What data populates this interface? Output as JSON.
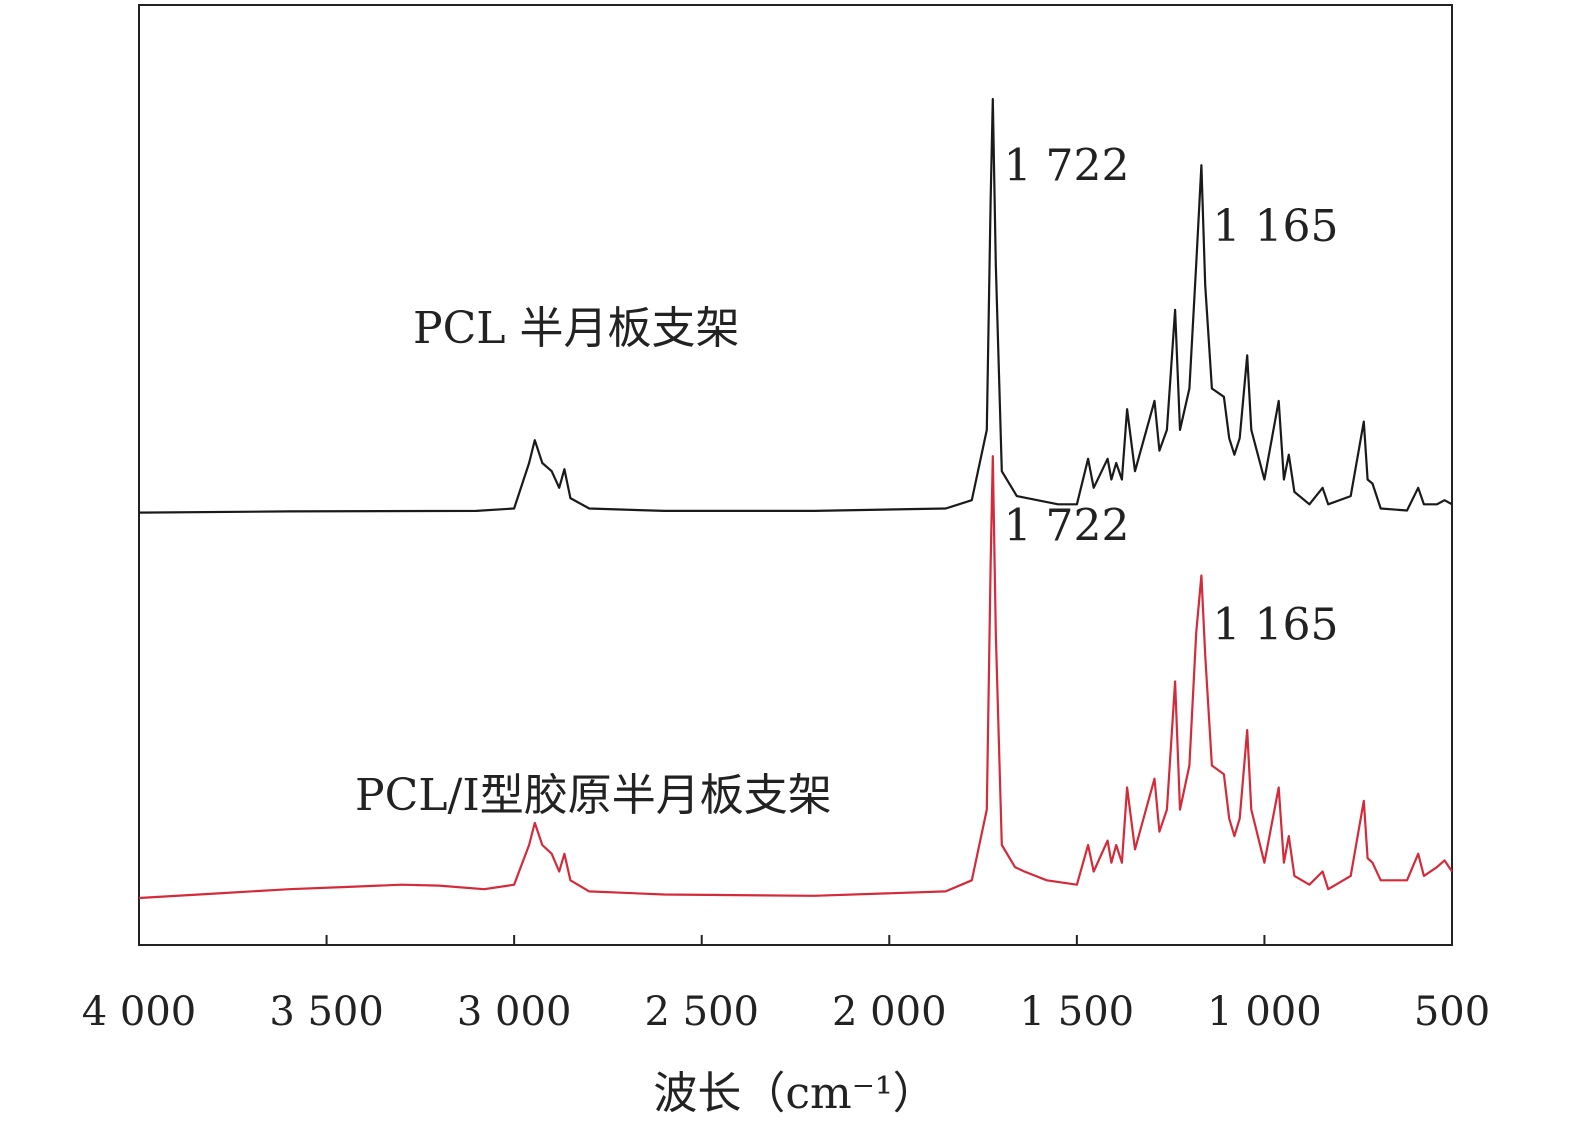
{
  "chart_data": {
    "type": "line",
    "xlabel": "波长（cm⁻¹）",
    "xlim": [
      4000,
      500
    ],
    "x_ticks": [
      {
        "value": 4000,
        "label": "4 000"
      },
      {
        "value": 3500,
        "label": "3 500"
      },
      {
        "value": 3000,
        "label": "3 000"
      },
      {
        "value": 2500,
        "label": "2 500"
      },
      {
        "value": 2000,
        "label": "2 000"
      },
      {
        "value": 1500,
        "label": "1 500"
      },
      {
        "value": 1000,
        "label": "1 000"
      },
      {
        "value": 500,
        "label": "500"
      }
    ],
    "y_axis": "relative intensity (no ticks shown)",
    "ylim": [
      0,
      1
    ],
    "grid": false,
    "series": [
      {
        "name": "PCL 半月板支架",
        "color": "#1a1a1a",
        "baseline": 0.46,
        "scale": 0.44,
        "points": [
          [
            4000,
            0.0
          ],
          [
            3600,
            0.003
          ],
          [
            3100,
            0.004
          ],
          [
            3000,
            0.01
          ],
          [
            2960,
            0.12
          ],
          [
            2945,
            0.175
          ],
          [
            2925,
            0.12
          ],
          [
            2900,
            0.1
          ],
          [
            2880,
            0.06
          ],
          [
            2866,
            0.105
          ],
          [
            2850,
            0.035
          ],
          [
            2800,
            0.01
          ],
          [
            2600,
            0.004
          ],
          [
            2200,
            0.004
          ],
          [
            1850,
            0.01
          ],
          [
            1780,
            0.03
          ],
          [
            1740,
            0.2
          ],
          [
            1730,
            0.75
          ],
          [
            1724,
            1.0
          ],
          [
            1716,
            0.6
          ],
          [
            1700,
            0.1
          ],
          [
            1660,
            0.04
          ],
          [
            1550,
            0.02
          ],
          [
            1500,
            0.02
          ],
          [
            1470,
            0.13
          ],
          [
            1455,
            0.06
          ],
          [
            1418,
            0.13
          ],
          [
            1408,
            0.08
          ],
          [
            1395,
            0.12
          ],
          [
            1380,
            0.08
          ],
          [
            1366,
            0.25
          ],
          [
            1345,
            0.1
          ],
          [
            1293,
            0.27
          ],
          [
            1280,
            0.15
          ],
          [
            1260,
            0.2
          ],
          [
            1238,
            0.49
          ],
          [
            1225,
            0.2
          ],
          [
            1200,
            0.3
          ],
          [
            1182,
            0.6
          ],
          [
            1168,
            0.84
          ],
          [
            1158,
            0.55
          ],
          [
            1140,
            0.3
          ],
          [
            1108,
            0.28
          ],
          [
            1094,
            0.18
          ],
          [
            1080,
            0.14
          ],
          [
            1066,
            0.18
          ],
          [
            1046,
            0.38
          ],
          [
            1035,
            0.2
          ],
          [
            1000,
            0.08
          ],
          [
            962,
            0.27
          ],
          [
            948,
            0.08
          ],
          [
            935,
            0.14
          ],
          [
            920,
            0.05
          ],
          [
            880,
            0.02
          ],
          [
            845,
            0.06
          ],
          [
            830,
            0.02
          ],
          [
            770,
            0.04
          ],
          [
            735,
            0.22
          ],
          [
            725,
            0.08
          ],
          [
            712,
            0.07
          ],
          [
            690,
            0.01
          ],
          [
            620,
            0.005
          ],
          [
            590,
            0.06
          ],
          [
            575,
            0.02
          ],
          [
            540,
            0.02
          ],
          [
            520,
            0.03
          ],
          [
            500,
            0.02
          ]
        ]
      },
      {
        "name": "PCL/Ⅰ型胶原半月板支架",
        "color": "#d42a3a",
        "baseline": 0.05,
        "scale": 0.47,
        "points": [
          [
            4000,
            0.0
          ],
          [
            3800,
            0.01
          ],
          [
            3600,
            0.02
          ],
          [
            3450,
            0.025
          ],
          [
            3300,
            0.03
          ],
          [
            3200,
            0.028
          ],
          [
            3080,
            0.02
          ],
          [
            3000,
            0.03
          ],
          [
            2960,
            0.12
          ],
          [
            2945,
            0.17
          ],
          [
            2925,
            0.12
          ],
          [
            2900,
            0.1
          ],
          [
            2880,
            0.06
          ],
          [
            2866,
            0.1
          ],
          [
            2850,
            0.04
          ],
          [
            2800,
            0.015
          ],
          [
            2600,
            0.008
          ],
          [
            2200,
            0.005
          ],
          [
            1850,
            0.015
          ],
          [
            1780,
            0.04
          ],
          [
            1740,
            0.2
          ],
          [
            1730,
            0.75
          ],
          [
            1724,
            1.0
          ],
          [
            1716,
            0.6
          ],
          [
            1700,
            0.12
          ],
          [
            1665,
            0.07
          ],
          [
            1640,
            0.06
          ],
          [
            1580,
            0.04
          ],
          [
            1500,
            0.03
          ],
          [
            1470,
            0.12
          ],
          [
            1455,
            0.06
          ],
          [
            1418,
            0.13
          ],
          [
            1408,
            0.08
          ],
          [
            1395,
            0.12
          ],
          [
            1380,
            0.08
          ],
          [
            1366,
            0.25
          ],
          [
            1345,
            0.11
          ],
          [
            1293,
            0.27
          ],
          [
            1280,
            0.15
          ],
          [
            1260,
            0.2
          ],
          [
            1238,
            0.49
          ],
          [
            1225,
            0.2
          ],
          [
            1200,
            0.3
          ],
          [
            1182,
            0.6
          ],
          [
            1168,
            0.73
          ],
          [
            1158,
            0.55
          ],
          [
            1140,
            0.3
          ],
          [
            1108,
            0.28
          ],
          [
            1094,
            0.18
          ],
          [
            1080,
            0.14
          ],
          [
            1066,
            0.18
          ],
          [
            1046,
            0.38
          ],
          [
            1035,
            0.2
          ],
          [
            1000,
            0.08
          ],
          [
            962,
            0.25
          ],
          [
            948,
            0.08
          ],
          [
            935,
            0.14
          ],
          [
            920,
            0.05
          ],
          [
            880,
            0.03
          ],
          [
            845,
            0.06
          ],
          [
            830,
            0.02
          ],
          [
            770,
            0.05
          ],
          [
            735,
            0.22
          ],
          [
            725,
            0.09
          ],
          [
            712,
            0.08
          ],
          [
            690,
            0.04
          ],
          [
            620,
            0.04
          ],
          [
            590,
            0.1
          ],
          [
            575,
            0.05
          ],
          [
            540,
            0.07
          ],
          [
            520,
            0.085
          ],
          [
            500,
            0.06
          ]
        ]
      }
    ],
    "annotations": [
      {
        "text": "1 722",
        "x": 1722,
        "series": 0,
        "position": "peak-right"
      },
      {
        "text": "1 165",
        "x": 1165,
        "series": 0,
        "position": "peak-right"
      },
      {
        "text": "1 722",
        "x": 1722,
        "series": 1,
        "position": "peak-right"
      },
      {
        "text": "1 165",
        "x": 1165,
        "series": 1,
        "position": "peak-right"
      }
    ]
  }
}
